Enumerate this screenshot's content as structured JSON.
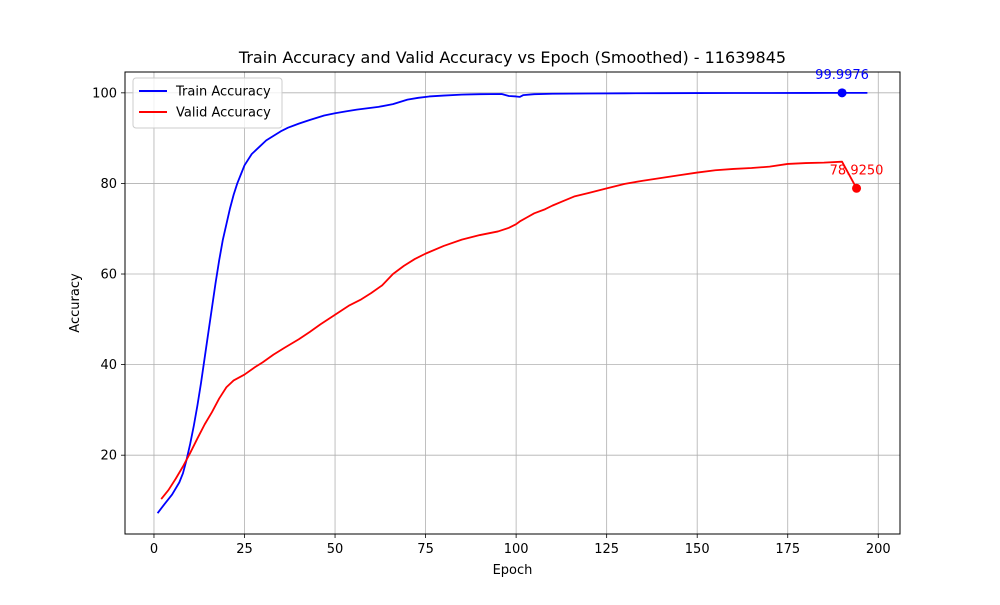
{
  "chart_data": {
    "type": "line",
    "title": "Train Accuracy and Valid Accuracy vs Epoch (Smoothed) - 11639845",
    "xlabel": "Epoch",
    "ylabel": "Accuracy",
    "xlim": [
      -8,
      206
    ],
    "ylim": [
      2.6,
      104.6
    ],
    "xticks": [
      0,
      25,
      50,
      75,
      100,
      125,
      150,
      175,
      200
    ],
    "yticks": [
      20,
      40,
      60,
      80,
      100
    ],
    "grid": true,
    "legend_position": "top-left",
    "series": [
      {
        "name": "Train Accuracy",
        "color": "#0000ff",
        "x": [
          1,
          3,
          5,
          7,
          8,
          9,
          10,
          11,
          12,
          13,
          14,
          15,
          16,
          17,
          18,
          19,
          20,
          21,
          22,
          23,
          24,
          25,
          27,
          29,
          31,
          33,
          35,
          37,
          40,
          43,
          47,
          50,
          53,
          56,
          59,
          62,
          66,
          68,
          70,
          73,
          76,
          80,
          85,
          90,
          96,
          98,
          100,
          101,
          102,
          105,
          110,
          120,
          130,
          140,
          150,
          160,
          170,
          180,
          190,
          197
        ],
        "y": [
          7.2,
          9.3,
          11.3,
          14.0,
          16.0,
          19.0,
          22.5,
          26.5,
          31.0,
          36.0,
          41.5,
          47.0,
          52.5,
          58.0,
          63.0,
          67.5,
          71.0,
          74.5,
          77.5,
          80.0,
          82.0,
          84.0,
          86.5,
          88.0,
          89.5,
          90.5,
          91.5,
          92.3,
          93.2,
          94.0,
          95.0,
          95.5,
          95.9,
          96.3,
          96.6,
          96.9,
          97.5,
          98.0,
          98.5,
          98.9,
          99.2,
          99.4,
          99.6,
          99.7,
          99.75,
          99.3,
          99.2,
          99.1,
          99.5,
          99.7,
          99.8,
          99.85,
          99.9,
          99.92,
          99.95,
          99.96,
          99.97,
          99.98,
          99.9976,
          99.99
        ],
        "annotation": {
          "x": 190,
          "y": 99.9976,
          "label": "99.9976"
        }
      },
      {
        "name": "Valid Accuracy",
        "color": "#ff0000",
        "x": [
          2,
          4,
          6,
          8,
          10,
          12,
          14,
          16,
          18,
          20,
          22,
          25,
          28,
          30,
          33,
          36,
          40,
          43,
          46,
          50,
          54,
          57,
          60,
          63,
          66,
          69,
          72,
          75,
          80,
          85,
          90,
          95,
          98,
          100,
          101,
          103,
          105,
          108,
          110,
          113,
          116,
          120,
          125,
          130,
          135,
          140,
          145,
          150,
          155,
          160,
          165,
          170,
          175,
          180,
          185,
          190,
          194
        ],
        "y": [
          10.3,
          12.3,
          14.8,
          17.5,
          20.5,
          23.7,
          26.8,
          29.5,
          32.5,
          35.0,
          36.5,
          37.8,
          39.5,
          40.5,
          42.2,
          43.7,
          45.6,
          47.2,
          48.9,
          51.0,
          53.1,
          54.3,
          55.8,
          57.5,
          60.0,
          61.8,
          63.3,
          64.5,
          66.2,
          67.6,
          68.6,
          69.4,
          70.2,
          71.0,
          71.6,
          72.5,
          73.4,
          74.3,
          75.1,
          76.1,
          77.1,
          77.9,
          78.9,
          79.9,
          80.6,
          81.2,
          81.8,
          82.4,
          82.9,
          83.2,
          83.4,
          83.7,
          84.3,
          84.5,
          84.6,
          84.8,
          78.925
        ],
        "annotation": {
          "x": 194,
          "y": 78.925,
          "label": "78.9250"
        }
      }
    ]
  }
}
